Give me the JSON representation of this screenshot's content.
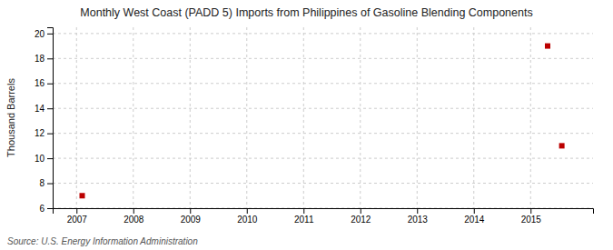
{
  "chart_data": {
    "type": "scatter",
    "title": "Monthly West Coast (PADD 5) Imports from Philippines of Gasoline Blending Components",
    "ylabel": "Thousand Barrels",
    "source": "Source: U.S. Energy Information Administration",
    "x": [
      2007.1,
      2015.3,
      2015.55
    ],
    "values": [
      7,
      19,
      11
    ],
    "color": "#bb0000",
    "marker": "square",
    "xlim": [
      2006.58,
      2016.1
    ],
    "ylim": [
      6,
      20.5
    ],
    "xticks": [
      2007,
      2008,
      2009,
      2010,
      2011,
      2012,
      2013,
      2014,
      2015
    ],
    "yticks": [
      6,
      8,
      10,
      12,
      14,
      16,
      18,
      20
    ],
    "grid": true
  }
}
